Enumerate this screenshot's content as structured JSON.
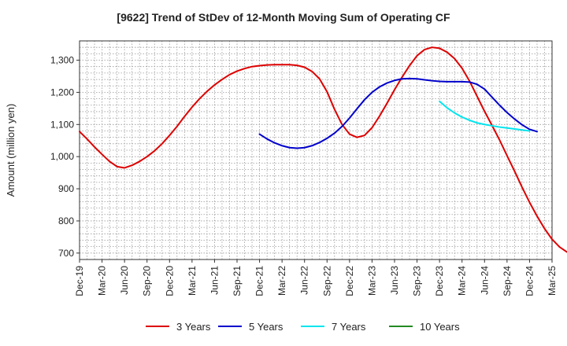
{
  "chart_data": {
    "type": "line",
    "title": "[9622]  Trend of StDev of 12-Month Moving Sum of Operating CF",
    "xlabel": "",
    "ylabel": "Amount (million yen)",
    "ylim": [
      680,
      1360
    ],
    "yticks": [
      700,
      800,
      900,
      1000,
      1100,
      1200,
      1300
    ],
    "ytick_labels": [
      "700",
      "800",
      "900",
      "1,000",
      "1,100",
      "1,200",
      "1,300"
    ],
    "xtick_labels": [
      "Dec-19",
      "Mar-20",
      "Jun-20",
      "Sep-20",
      "Dec-20",
      "Mar-21",
      "Jun-21",
      "Sep-21",
      "Dec-21",
      "Mar-22",
      "Jun-22",
      "Sep-22",
      "Dec-22",
      "Mar-23",
      "Jun-23",
      "Sep-23",
      "Dec-23",
      "Mar-24",
      "Jun-24",
      "Sep-24",
      "Dec-24",
      "Mar-25"
    ],
    "grid": true,
    "legend_position": "bottom",
    "series": [
      {
        "name": "3 Years",
        "color": "#dd0000",
        "start_index": 0,
        "values": [
          1078,
          1055,
          1030,
          1007,
          985,
          969,
          965,
          973,
          985,
          1000,
          1018,
          1040,
          1066,
          1094,
          1125,
          1154,
          1180,
          1203,
          1223,
          1240,
          1255,
          1266,
          1274,
          1280,
          1283,
          1285,
          1286,
          1286,
          1286,
          1284,
          1278,
          1265,
          1242,
          1202,
          1147,
          1100,
          1070,
          1060,
          1066,
          1090,
          1126,
          1166,
          1208,
          1247,
          1283,
          1314,
          1333,
          1340,
          1337,
          1325,
          1305,
          1275,
          1235,
          1188,
          1141,
          1097,
          1052,
          1003,
          955,
          905,
          858,
          815,
          776,
          743,
          719,
          703,
          697
        ]
      },
      {
        "name": "5 Years",
        "color": "#0000cc",
        "start_index": 24,
        "values": [
          1070,
          1055,
          1043,
          1034,
          1028,
          1026,
          1028,
          1034,
          1044,
          1057,
          1073,
          1094,
          1120,
          1149,
          1177,
          1200,
          1217,
          1229,
          1237,
          1242,
          1243,
          1242,
          1239,
          1236,
          1234,
          1233,
          1233,
          1233,
          1232,
          1225,
          1210,
          1185,
          1160,
          1137,
          1117,
          1099,
          1085,
          1078
        ]
      },
      {
        "name": "7 Years",
        "color": "#00e5ee",
        "start_index": 48,
        "values": [
          1172,
          1152,
          1136,
          1123,
          1113,
          1105,
          1100,
          1096,
          1092,
          1089,
          1086,
          1083,
          1080
        ]
      },
      {
        "name": "10 Years",
        "color": "#228b22",
        "start_index": 0,
        "values": []
      }
    ]
  }
}
